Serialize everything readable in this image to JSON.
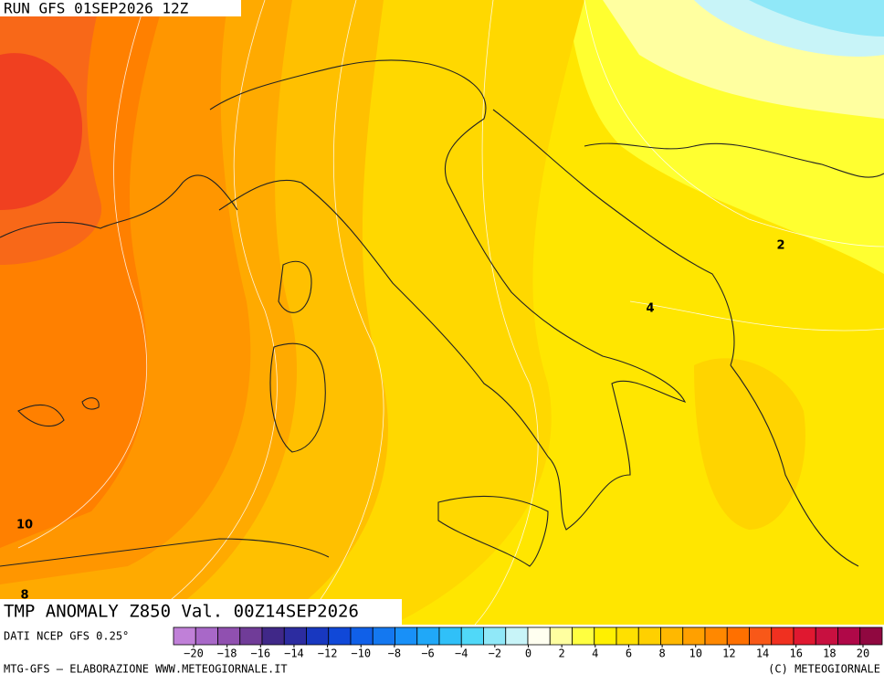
{
  "header": {
    "run": "RUN GFS 01SEP2026 12Z"
  },
  "map": {
    "title": "TMP ANOMALY Z850 Val. 00Z14SEP2026",
    "contour_labels": [
      2,
      4,
      10,
      8
    ]
  },
  "colorbar": {
    "source": "DATI NCEP GFS 0.25°",
    "colors": [
      "#c080d8",
      "#a868c8",
      "#9050b0",
      "#703c98",
      "#402888",
      "#2c2ca0",
      "#1838c0",
      "#1048d8",
      "#1060e8",
      "#1478f0",
      "#1890f8",
      "#20a8f8",
      "#30c0f8",
      "#50d8f8",
      "#90e8f8",
      "#c8f4f8",
      "#fffff0",
      "#ffffa0",
      "#ffff40",
      "#fff000",
      "#ffe000",
      "#ffd000",
      "#ffb800",
      "#ffa000",
      "#ff8800",
      "#ff7000",
      "#f85818",
      "#f03020",
      "#e01830",
      "#c81040",
      "#b00848",
      "#900840"
    ],
    "ticks": [
      {
        "value": -20,
        "label": "−20"
      },
      {
        "value": -18,
        "label": "−18"
      },
      {
        "value": -16,
        "label": "−16"
      },
      {
        "value": -14,
        "label": "−14"
      },
      {
        "value": -12,
        "label": "−12"
      },
      {
        "value": -10,
        "label": "−10"
      },
      {
        "value": -8,
        "label": "−8"
      },
      {
        "value": -6,
        "label": "−6"
      },
      {
        "value": -4,
        "label": "−4"
      },
      {
        "value": -2,
        "label": "−2"
      },
      0,
      2,
      4,
      6,
      8,
      10,
      12,
      14,
      16,
      18,
      20
    ]
  },
  "footer": {
    "left": "MTG-GFS — ELABORAZIONE WWW.METEOGIORNALE.IT",
    "right": "(C) METEOGIORNALE"
  }
}
